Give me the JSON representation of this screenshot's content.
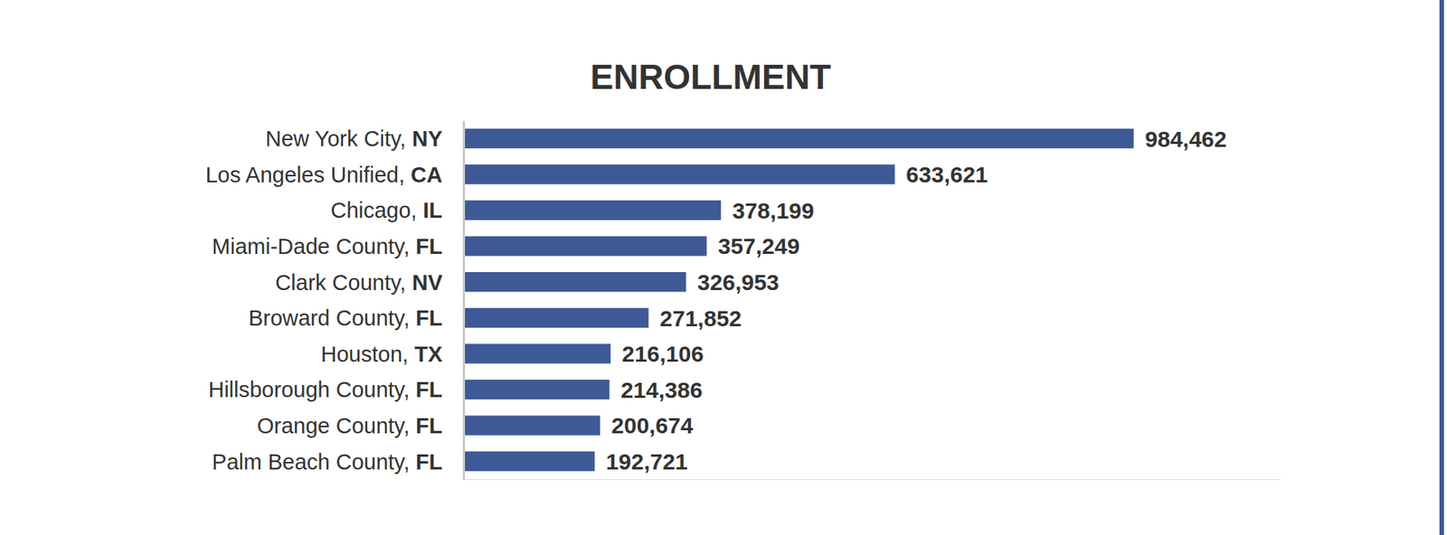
{
  "chart_data": {
    "type": "bar",
    "title": "ENROLLMENT",
    "orientation": "horizontal",
    "categories": [
      "New York City, NY",
      "Los Angeles Unified, CA",
      "Chicago, IL",
      "Miami-Dade County, FL",
      "Clark County, NV",
      "Broward County, FL",
      "Houston, TX",
      "Hillsborough County, FL",
      "Orange County, FL",
      "Palm Beach County, FL"
    ],
    "values": [
      984462,
      633621,
      378199,
      357249,
      326953,
      271852,
      216106,
      214386,
      200674,
      192721
    ],
    "value_labels": [
      "984,462",
      "633,621",
      "378,199",
      "357,249",
      "326,953",
      "271,852",
      "216,106",
      "214,386",
      "200,674",
      "192,721"
    ],
    "color": "#3d5a96",
    "xlim": [
      0,
      1200000
    ],
    "data_labels": true,
    "tick_labels": "y",
    "grid": false
  }
}
